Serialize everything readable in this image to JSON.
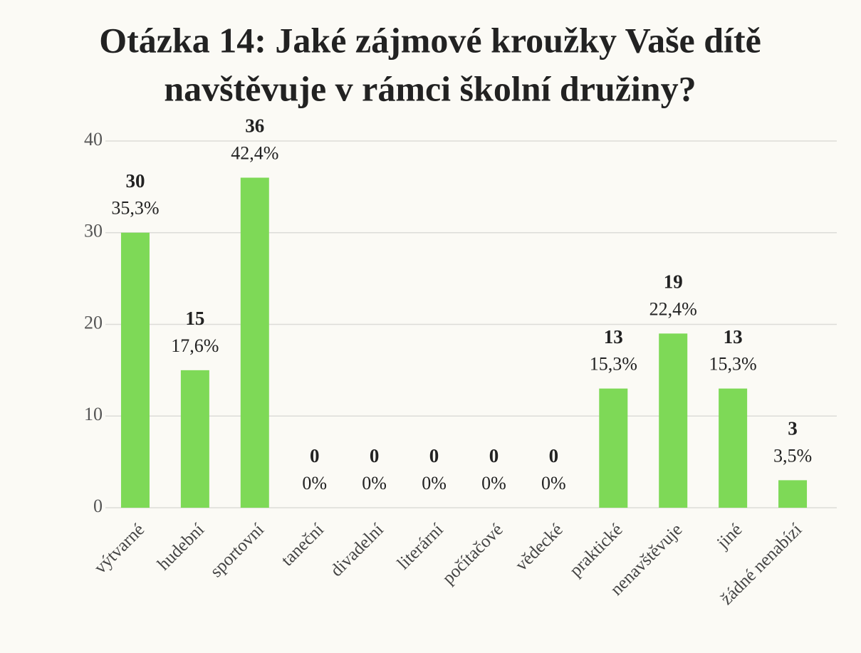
{
  "chart_data": {
    "type": "bar",
    "title": [
      "Otázka 14: Jaké zájmové kroužky Vaše dítě",
      "navštěvuje v rámci školní družiny?"
    ],
    "categories": [
      "výtvarné",
      "hudební",
      "sportovní",
      "taneční",
      "divadelní",
      "literární",
      "počítačové",
      "vědecké",
      "praktické",
      "nenavštěvuje",
      "jiné",
      "žádné nenabízí"
    ],
    "values": [
      30,
      15,
      36,
      0,
      0,
      0,
      0,
      0,
      13,
      19,
      13,
      3
    ],
    "shares": [
      35.3,
      17.6,
      42.4,
      0,
      0,
      0,
      0,
      0,
      15.3,
      22.4,
      15.3,
      3.5
    ],
    "share_labels": [
      "35,3%",
      "17,6%",
      "42,4%",
      "0%",
      "0%",
      "0%",
      "0%",
      "0%",
      "15,3%",
      "22,4%",
      "15,3%",
      "3,5%"
    ],
    "color": "#7ed957",
    "ylim": [
      0,
      40
    ],
    "yticks": [
      0,
      10,
      20,
      30,
      40
    ],
    "grid": true
  }
}
